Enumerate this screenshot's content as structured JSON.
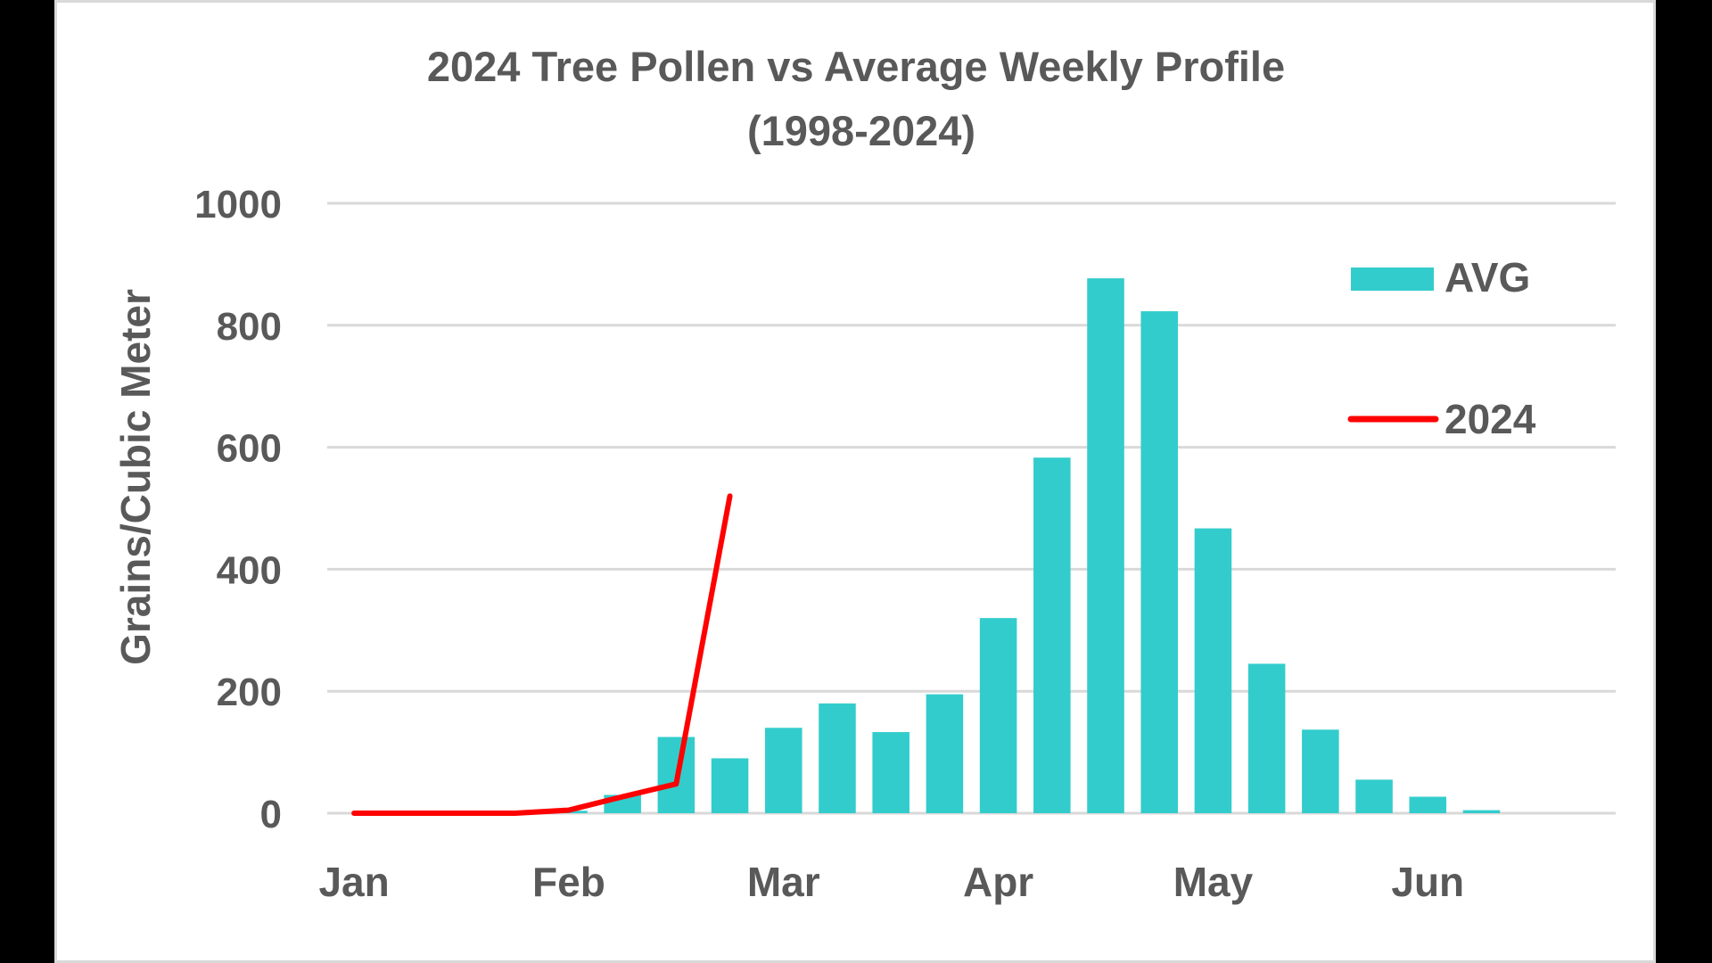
{
  "chart_data": {
    "type": "bar",
    "title": "2024 Tree Pollen vs Average Weekly Profile",
    "subtitle": "(1998-2024)",
    "xlabel": "",
    "ylabel": "Grains/Cubic Meter",
    "ylim": [
      0,
      1000
    ],
    "yticks": [
      "0",
      "200",
      "400",
      "600",
      "800",
      "1000"
    ],
    "categories_count": 24,
    "xtick_labels": [
      {
        "index": 0,
        "label": "Jan"
      },
      {
        "index": 4,
        "label": "Feb"
      },
      {
        "index": 8,
        "label": "Mar"
      },
      {
        "index": 12,
        "label": "Apr"
      },
      {
        "index": 16,
        "label": "May"
      },
      {
        "index": 20,
        "label": "Jun"
      }
    ],
    "grid": true,
    "legend_placement": "right",
    "series": [
      {
        "name": "AVG",
        "type": "bar",
        "color": "#33CCCC",
        "values": [
          0,
          0,
          0,
          0,
          4,
          30,
          125,
          90,
          140,
          180,
          133,
          195,
          320,
          583,
          877,
          823,
          467,
          245,
          137,
          55,
          27,
          5,
          null,
          null
        ]
      },
      {
        "name": "2024",
        "type": "line",
        "color": "#FF0000",
        "values": [
          0,
          0,
          0,
          0,
          5,
          27,
          48,
          520,
          null,
          null,
          null,
          null,
          null,
          null,
          null,
          null,
          null,
          null,
          null,
          null,
          null,
          null,
          null,
          null
        ]
      }
    ]
  }
}
